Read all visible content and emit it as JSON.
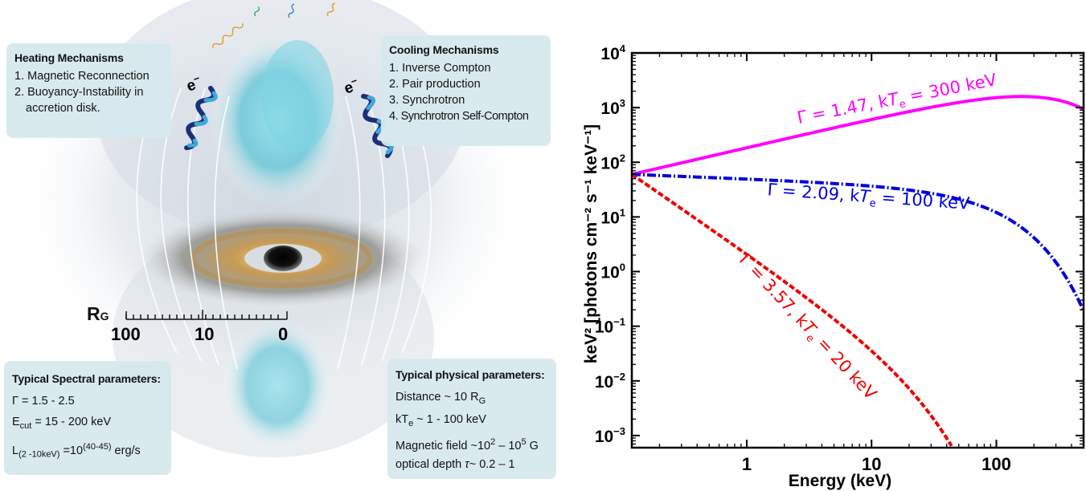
{
  "illustration": {
    "heating": {
      "title": "Heating Mechanisms",
      "items": [
        "1. Magnetic Reconnection",
        "2. Buoyancy-Instability in",
        "accretion disk."
      ]
    },
    "cooling": {
      "title": "Cooling Mechanisms",
      "items": [
        "1. Inverse Compton",
        "2. Pair production",
        "3. Synchrotron",
        "4. Synchrotron Self-Compton"
      ]
    },
    "spectral": {
      "title": "Typical Spectral parameters:",
      "gamma": "Γ = 1.5 - 2.5",
      "ecut_label": "E",
      "ecut_sub": "cut",
      "ecut_value": "= 15 - 200 keV",
      "lum_label": "L",
      "lum_sub": "(2 -10keV)",
      "lum_eq": " =10",
      "lum_sup": "(40-45)",
      "lum_unit": " erg/s"
    },
    "physical": {
      "title": "Typical physical parameters:",
      "distance_text": "Distance ~ 10 R",
      "distance_sub": "G",
      "kt_text": "kT",
      "kt_sub": "e",
      "kt_value": " ~ 1 - 100 keV",
      "mag_text": "Magnetic field ~10",
      "mag_sup1": "2",
      "mag_mid": " – 10",
      "mag_sup2": "5",
      "mag_unit": " G",
      "depth_text": "optical depth ",
      "depth_tau": "τ",
      "depth_value": "~ 0.2 – 1"
    },
    "scale": {
      "label": "R",
      "label_sub": "G",
      "ticks": [
        "100",
        "10",
        "0"
      ]
    },
    "electron_label": "e",
    "electron_sup": "−",
    "colors": {
      "box": "#d6e8ee",
      "helix_dark": "#1b2f7a",
      "helix_light": "#3fa9d9",
      "cyan_jet": "#5fc6d8"
    }
  },
  "chart_data": {
    "type": "line",
    "xlabel": "Energy (keV)",
    "ylabel": "keV² [photons cm⁻² s⁻¹ keV⁻¹]",
    "xscale": "log",
    "yscale": "log",
    "xlim": [
      0.12,
      500
    ],
    "ylim": [
      0.0006,
      10000
    ],
    "xticks": [
      {
        "value": 1,
        "label": "1"
      },
      {
        "value": 10,
        "label": "10"
      },
      {
        "value": 100,
        "label": "100"
      }
    ],
    "ytick_exponents": [
      -3,
      -2,
      -1,
      0,
      1,
      2,
      3,
      4
    ],
    "ytick_base": "10",
    "grid": false,
    "series": [
      {
        "name": "Γ = 1.47, kTe = 300 keV",
        "label_prefix": "Γ = 1.47, k",
        "label_T": "T",
        "label_sub": "e",
        "label_suffix": " = 300 keV",
        "gamma": 1.47,
        "kTe": 300,
        "norm": 60,
        "color": "#ff00ff",
        "style": "solid"
      },
      {
        "name": "Γ = 2.09, kTe = 100 keV",
        "label_prefix": "Γ = 2.09, k",
        "label_T": "T",
        "label_sub": "e",
        "label_suffix": " = 100 keV",
        "gamma": 2.09,
        "kTe": 100,
        "norm": 60,
        "color": "#0000dd",
        "style": "dashdot"
      },
      {
        "name": "Γ = 3.57, kTe = 20 keV",
        "label_prefix": "Γ = 3.57, k",
        "label_T": "T",
        "label_sub": "e",
        "label_suffix": " = 20 keV",
        "gamma": 3.57,
        "kTe": 20,
        "norm": 60,
        "color": "#ee0000",
        "style": "dashed"
      }
    ]
  }
}
